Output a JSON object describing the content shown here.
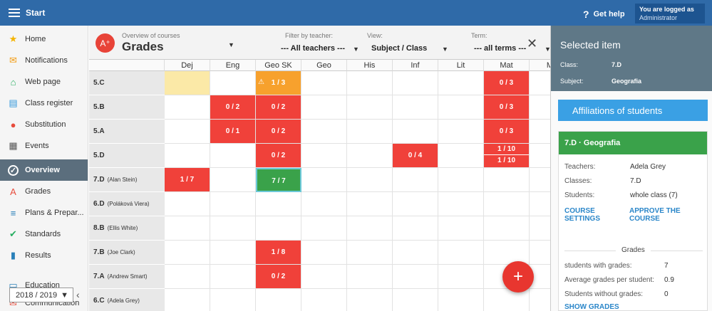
{
  "topbar": {
    "title": "Start",
    "help_label": "Get help",
    "logged_label": "You are logged as",
    "logged_role": "Administrator"
  },
  "sidebar": {
    "items": [
      {
        "label": "Home",
        "icon": "star-icon",
        "color": "#f4b400"
      },
      {
        "label": "Notifications",
        "icon": "mail-icon",
        "color": "#f39c12"
      },
      {
        "label": "Web page",
        "icon": "home-icon",
        "color": "#27ae60"
      },
      {
        "label": "Class register",
        "icon": "register-icon",
        "color": "#3498db"
      },
      {
        "label": "Substitution",
        "icon": "person-icon",
        "color": "#e74c3c"
      },
      {
        "label": "Events",
        "icon": "calendar-icon",
        "color": "#555555"
      },
      {
        "label": "Overview",
        "icon": "check-icon",
        "color": "#ffffff",
        "active": true
      },
      {
        "label": "Grades",
        "icon": "grades-icon",
        "color": "#e74c3c"
      },
      {
        "label": "Plans & Prepar...",
        "icon": "plans-icon",
        "color": "#2980b9"
      },
      {
        "label": "Standards",
        "icon": "shield-icon",
        "color": "#27ae60"
      },
      {
        "label": "Results",
        "icon": "bar-chart-icon",
        "color": "#2980b9"
      },
      {
        "label": "Education",
        "icon": "education-icon",
        "color": "#2980b9"
      },
      {
        "label": "Communication",
        "icon": "communication-icon",
        "color": "#e74c3c"
      }
    ],
    "year": "2018 / 2019"
  },
  "header": {
    "overview_label": "Overview of courses",
    "title": "Grades",
    "filter_label": "Filter by teacher:",
    "filter_value": "--- All teachers ---",
    "view_label": "View:",
    "view_value": "Subject / Class",
    "term_label": "Term:",
    "term_value": "--- all terms ---"
  },
  "grid": {
    "columns": [
      "Dej",
      "Eng",
      "Geo SK",
      "Geo",
      "His",
      "Inf",
      "Lit",
      "Mat",
      "Ma"
    ],
    "rows": [
      {
        "name": "5.C",
        "teacher": "",
        "cells": {
          "0": {
            "type": "yellow"
          },
          "2": {
            "type": "orange",
            "value": "1 / 3",
            "warn": "⚠"
          },
          "7": {
            "type": "red",
            "value": "0 / 3"
          }
        }
      },
      {
        "name": "5.B",
        "teacher": "",
        "cells": {
          "1": {
            "type": "red",
            "value": "0 / 2"
          },
          "2": {
            "type": "red",
            "value": "0 / 2"
          },
          "7": {
            "type": "red",
            "value": "0 / 3"
          }
        }
      },
      {
        "name": "5.A",
        "teacher": "",
        "cells": {
          "1": {
            "type": "red",
            "value": "0 / 1"
          },
          "2": {
            "type": "red",
            "value": "0 / 2"
          },
          "7": {
            "type": "red",
            "value": "0 / 3"
          }
        }
      },
      {
        "name": "5.D",
        "teacher": "",
        "cells": {
          "2": {
            "type": "red",
            "value": "0 / 2"
          },
          "5": {
            "type": "red",
            "value": "0 / 4"
          },
          "7": {
            "type": "red",
            "split": [
              "1 / 10",
              "1 / 10"
            ]
          }
        }
      },
      {
        "name": "7.D",
        "teacher": "(Alan Stein)",
        "cells": {
          "0": {
            "type": "red",
            "value": "1 / 7"
          },
          "2": {
            "type": "green",
            "value": "7 / 7"
          }
        }
      },
      {
        "name": "6.D",
        "teacher": "(Poláková Viera)",
        "cells": {}
      },
      {
        "name": "8.B",
        "teacher": "(Ellis White)",
        "cells": {}
      },
      {
        "name": "7.B",
        "teacher": "(Joe Clark)",
        "cells": {
          "2": {
            "type": "red",
            "value": "1 / 8"
          }
        }
      },
      {
        "name": "7.A",
        "teacher": "(Andrew Smart)",
        "cells": {
          "2": {
            "type": "red",
            "value": "0 / 2"
          }
        }
      },
      {
        "name": "6.C",
        "teacher": "(Adela Grey)",
        "cells": {}
      }
    ]
  },
  "fab": {
    "label": "+"
  },
  "panel": {
    "title": "Selected item",
    "class_label": "Class:",
    "class_value": "7.D",
    "subject_label": "Subject:",
    "subject_value": "Geografia",
    "aff_button": "Affiliations of students",
    "card_title": "7.D · Geografia",
    "teachers_label": "Teachers:",
    "teachers_value": "Adela Grey",
    "classes_label": "Classes:",
    "classes_value": "7.D",
    "students_label": "Students:",
    "students_value": "whole class (7)",
    "course_settings": "COURSE SETTINGS",
    "approve_course": "APPROVE THE COURSE",
    "grades_section": "Grades",
    "stat1_label": "students with grades:",
    "stat1_value": "7",
    "stat2_label": "Average grades per student:",
    "stat2_value": "0.9",
    "stat3_label": "Students without grades:",
    "stat3_value": "0",
    "show_grades": "SHOW GRADES"
  },
  "colors": {
    "topbar": "#2f6aa8",
    "red": "#f0413a",
    "orange": "#f7a12d",
    "green": "#3aa24a",
    "panel": "#5f7887",
    "accent_blue": "#3aa0e4"
  }
}
